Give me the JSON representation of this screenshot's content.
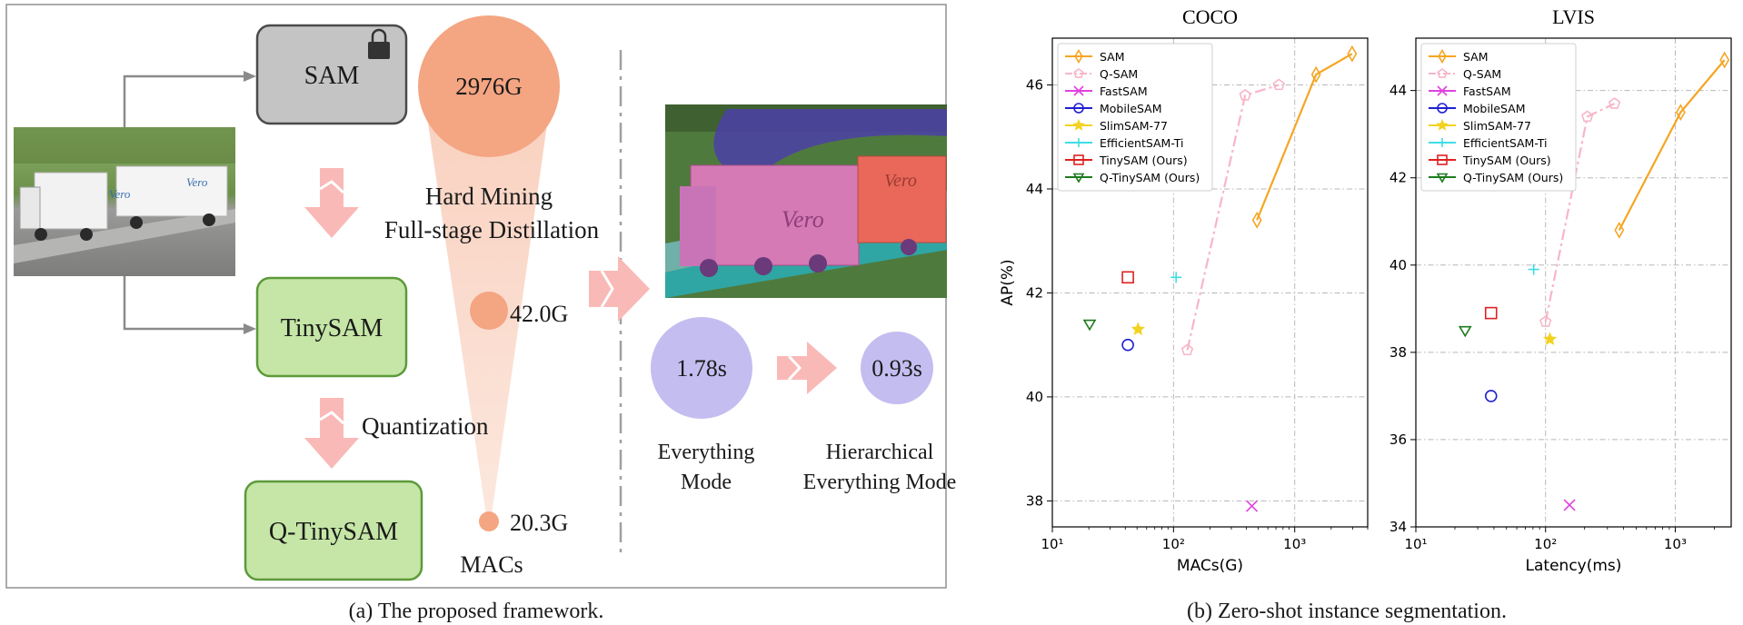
{
  "panel_a": {
    "caption": "(a) The proposed framework.",
    "sam_label": "SAM",
    "tinysam_label": "TinySAM",
    "qtinysam_label": "Q-TinySAM",
    "distill_line1": "Hard Mining",
    "distill_line2": "Full-stage Distillation",
    "quant_label": "Quantization",
    "macs_title": "MACs",
    "macs_sam": "2976G",
    "macs_tinysam": "42.0G",
    "macs_qtinysam": "20.3G",
    "time_everything": "1.78s",
    "time_hier": "0.93s",
    "mode_everything_line1": "Everything",
    "mode_everything_line2": "Mode",
    "mode_hier_line1": "Hierarchical",
    "mode_hier_line2": "Everything Mode",
    "truck_text": "Vero",
    "colors": {
      "sam_fill": "#c4c4c4",
      "tinysam_fill": "#c5e6a6",
      "tinysam_border": "#5c9a3a",
      "macs_circle": "#f4a582",
      "time_circle": "#c4bdf0",
      "arrow_pink": "#f9b9b7"
    }
  },
  "panel_b": {
    "caption": "(b) Zero-shot instance segmentation."
  },
  "chart_data": [
    {
      "type": "scatter",
      "title": "COCO",
      "xlabel": "MACs(G)",
      "ylabel": "AP(%)",
      "xscale": "log",
      "xlim": [
        10,
        4000
      ],
      "ylim": [
        37.5,
        46.9
      ],
      "yticks": [
        38,
        40,
        42,
        44,
        46
      ],
      "xtick_labels": [
        "10¹",
        "10²",
        "10³"
      ],
      "ytick_labels": [
        "38",
        "40",
        "42",
        "44",
        "46"
      ],
      "grid": true,
      "legend_position": "top-left",
      "series": [
        {
          "name": "SAM",
          "marker": "diamond",
          "line": "solid",
          "color": "#f5a623",
          "points": [
            [
              488,
              43.4
            ],
            [
              1500,
              46.2
            ],
            [
              2976,
              46.6
            ]
          ]
        },
        {
          "name": "Q-SAM",
          "marker": "pentagon",
          "line": "dashdot",
          "color": "#f7b6c8",
          "points": [
            [
              130,
              40.9
            ],
            [
              390,
              45.8
            ],
            [
              740,
              46.0
            ]
          ]
        },
        {
          "name": "FastSAM",
          "marker": "x",
          "line": "none",
          "color": "#e040e0",
          "points": [
            [
              443,
              37.9
            ]
          ]
        },
        {
          "name": "MobileSAM",
          "marker": "circle",
          "line": "none",
          "color": "#1f1fd0",
          "points": [
            [
              42,
              41.0
            ]
          ]
        },
        {
          "name": "SlimSAM-77",
          "marker": "star",
          "line": "none",
          "color": "#f2d21f",
          "points": [
            [
              51,
              41.3
            ]
          ]
        },
        {
          "name": "EfficientSAM-Ti",
          "marker": "plus",
          "line": "none",
          "color": "#3fdde4",
          "points": [
            [
              105,
              42.3
            ]
          ]
        },
        {
          "name": "TinySAM (Ours)",
          "marker": "square",
          "line": "none",
          "color": "#e02020",
          "points": [
            [
              42,
              42.3
            ]
          ]
        },
        {
          "name": "Q-TinySAM (Ours)",
          "marker": "triangle-down",
          "line": "none",
          "color": "#1e7b1e",
          "points": [
            [
              20.3,
              41.4
            ]
          ]
        }
      ]
    },
    {
      "type": "scatter",
      "title": "LVIS",
      "xlabel": "Latency(ms)",
      "ylabel": "",
      "xscale": "log",
      "xlim": [
        10,
        2700
      ],
      "ylim": [
        34,
        45.2
      ],
      "yticks": [
        34,
        36,
        38,
        40,
        42,
        44
      ],
      "xtick_labels": [
        "10¹",
        "10²",
        "10³"
      ],
      "ytick_labels": [
        "34",
        "36",
        "38",
        "40",
        "42",
        "44"
      ],
      "grid": true,
      "legend_position": "top-left",
      "series": [
        {
          "name": "SAM",
          "marker": "diamond",
          "line": "solid",
          "color": "#f5a623",
          "points": [
            [
              370,
              40.8
            ],
            [
              1100,
              43.5
            ],
            [
              2400,
              44.7
            ]
          ]
        },
        {
          "name": "Q-SAM",
          "marker": "pentagon",
          "line": "dashdot",
          "color": "#f7b6c8",
          "points": [
            [
              100,
              38.7
            ],
            [
              210,
              43.4
            ],
            [
              340,
              43.7
            ]
          ]
        },
        {
          "name": "FastSAM",
          "marker": "x",
          "line": "none",
          "color": "#e040e0",
          "points": [
            [
              153,
              34.5
            ]
          ]
        },
        {
          "name": "MobileSAM",
          "marker": "circle",
          "line": "none",
          "color": "#1f1fd0",
          "points": [
            [
              38,
              37.0
            ]
          ]
        },
        {
          "name": "SlimSAM-77",
          "marker": "star",
          "line": "none",
          "color": "#f2d21f",
          "points": [
            [
              108,
              38.3
            ]
          ]
        },
        {
          "name": "EfficientSAM-Ti",
          "marker": "plus",
          "line": "none",
          "color": "#3fdde4",
          "points": [
            [
              81,
              39.9
            ]
          ]
        },
        {
          "name": "TinySAM (Ours)",
          "marker": "square",
          "line": "none",
          "color": "#e02020",
          "points": [
            [
              38,
              38.9
            ]
          ]
        },
        {
          "name": "Q-TinySAM (Ours)",
          "marker": "triangle-down",
          "line": "none",
          "color": "#1e7b1e",
          "points": [
            [
              24,
              38.5
            ]
          ]
        }
      ]
    }
  ]
}
